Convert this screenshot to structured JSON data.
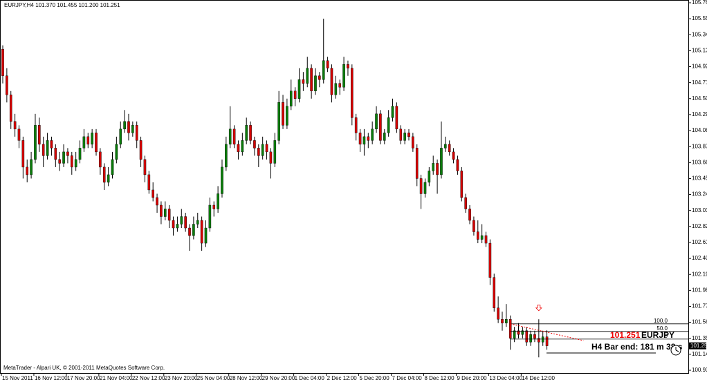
{
  "chart_data": {
    "type": "candlestick",
    "title": "EURJPY,H4  101.370 101.455 101.200 101.251",
    "footer": "MetaTrader - Alpari UK, © 2001-2011 MetaQuotes Software Corp.",
    "up_color": "#0a7d0a",
    "down_color": "#d40000",
    "ylim": [
      100.93,
      105.76
    ],
    "yticks": [
      {
        "value": 105.76,
        "label": "105.760"
      },
      {
        "value": 105.55,
        "label": "105.550"
      },
      {
        "value": 105.34,
        "label": "105.340"
      },
      {
        "value": 105.13,
        "label": "105.130"
      },
      {
        "value": 104.92,
        "label": "104.920"
      },
      {
        "value": 104.71,
        "label": "104.710"
      },
      {
        "value": 104.5,
        "label": "104.500"
      },
      {
        "value": 104.29,
        "label": "104.290"
      },
      {
        "value": 104.08,
        "label": "104.080"
      },
      {
        "value": 103.87,
        "label": "103.870"
      },
      {
        "value": 103.66,
        "label": "103.660"
      },
      {
        "value": 103.45,
        "label": "103.450"
      },
      {
        "value": 103.24,
        "label": "103.240"
      },
      {
        "value": 103.03,
        "label": "103.030"
      },
      {
        "value": 102.82,
        "label": "102.820"
      },
      {
        "value": 102.61,
        "label": "102.610"
      },
      {
        "value": 102.4,
        "label": "102.400"
      },
      {
        "value": 102.19,
        "label": "102.190"
      },
      {
        "value": 101.98,
        "label": "101.980"
      },
      {
        "value": 101.77,
        "label": "101.770"
      },
      {
        "value": 101.56,
        "label": "101.560"
      },
      {
        "value": 101.35,
        "label": "101.350"
      },
      {
        "value": 101.14,
        "label": "101.140"
      },
      {
        "value": 100.93,
        "label": "100.930"
      }
    ],
    "categories": [
      "15 Nov 2011",
      null,
      null,
      null,
      null,
      null,
      null,
      null,
      "16 Nov 12:00",
      null,
      null,
      null,
      null,
      null,
      null,
      null,
      "17 Nov 20:00",
      null,
      null,
      null,
      null,
      null,
      null,
      null,
      "21 Nov 04:00",
      null,
      null,
      null,
      null,
      null,
      null,
      null,
      "22 Nov 12:00",
      null,
      null,
      null,
      null,
      null,
      null,
      null,
      "23 Nov 20:00",
      null,
      null,
      null,
      null,
      null,
      null,
      null,
      "25 Nov 04:00",
      null,
      null,
      null,
      null,
      null,
      null,
      null,
      "28 Nov 12:00",
      null,
      null,
      null,
      null,
      null,
      null,
      null,
      "29 Nov 20:00",
      null,
      null,
      null,
      null,
      null,
      null,
      null,
      "1 Dec 04:00",
      null,
      null,
      null,
      null,
      null,
      null,
      null,
      "2 Dec 12:00",
      null,
      null,
      null,
      null,
      null,
      null,
      null,
      "5 Dec 20:00",
      null,
      null,
      null,
      null,
      null,
      null,
      null,
      "7 Dec 04:00",
      null,
      null,
      null,
      null,
      null,
      null,
      null,
      "8 Dec 12:00",
      null,
      null,
      null,
      null,
      null,
      null,
      null,
      "9 Dec 20:00",
      null,
      null,
      null,
      null,
      null,
      null,
      null,
      "13 Dec 04:00",
      null,
      null,
      null,
      null,
      null,
      null,
      null,
      "14 Dec 12:00",
      null,
      null,
      null,
      null,
      null,
      null
    ],
    "open": [
      105.15,
      104.8,
      104.55,
      104.2,
      104.1,
      103.95,
      103.6,
      103.5,
      103.7,
      104.15,
      103.9,
      103.75,
      103.95,
      103.85,
      103.7,
      103.65,
      103.8,
      103.75,
      103.6,
      103.7,
      103.85,
      104,
      103.9,
      104.05,
      103.8,
      103.6,
      103.4,
      103.5,
      103.7,
      103.9,
      104.1,
      104.2,
      104.05,
      104.15,
      103.95,
      103.7,
      103.5,
      103.3,
      103.2,
      103.1,
      102.95,
      103.05,
      102.9,
      102.8,
      102.85,
      102.95,
      102.8,
      102.7,
      102.85,
      102.9,
      102.6,
      102.8,
      103.1,
      103.05,
      103.25,
      103.6,
      103.9,
      104.1,
      103.9,
      103.8,
      103.95,
      104.15,
      103.95,
      103.85,
      103.75,
      103.9,
      103.8,
      103.65,
      103.95,
      104.45,
      104.15,
      104.4,
      104.6,
      104.5,
      104.75,
      104.7,
      104.9,
      104.6,
      104.8,
      104.75,
      105,
      104.9,
      104.55,
      104.7,
      104.65,
      104.95,
      104.9,
      104.25,
      104.05,
      103.9,
      104,
      103.95,
      104.1,
      104.3,
      103.95,
      104.05,
      104.25,
      104.4,
      104.1,
      103.95,
      104.05,
      104,
      103.85,
      103.45,
      103.25,
      103.4,
      103.55,
      103.65,
      103.5,
      103.85,
      103.9,
      103.8,
      103.7,
      103.55,
      103.2,
      103.05,
      102.9,
      102.75,
      102.65,
      102.7,
      102.6,
      102.15,
      101.75,
      101.6,
      101.55,
      101.6,
      101.35,
      101.45,
      101.4,
      101.45,
      101.3,
      101.4,
      101.35,
      101.3,
      101.37
    ],
    "high": [
      105.2,
      104.9,
      104.6,
      104.3,
      104.15,
      104,
      103.7,
      103.8,
      104.3,
      104.25,
      104,
      104.05,
      104,
      103.9,
      103.8,
      103.9,
      103.85,
      103.8,
      103.8,
      103.95,
      104.1,
      104.05,
      104.1,
      104.1,
      103.85,
      103.65,
      103.6,
      103.8,
      104,
      104.2,
      104.35,
      104.3,
      104.2,
      104.2,
      104,
      103.75,
      103.55,
      103.4,
      103.25,
      103.15,
      103.15,
      103.1,
      102.95,
      102.95,
      103.05,
      103,
      102.85,
      102.95,
      103,
      102.95,
      102.9,
      103.2,
      103.15,
      103.35,
      103.7,
      104,
      104.4,
      104.15,
      103.95,
      104.05,
      104.25,
      104.2,
      104,
      103.9,
      104,
      103.95,
      103.85,
      104.05,
      104.6,
      104.55,
      104.5,
      104.75,
      104.65,
      104.9,
      104.85,
      105.05,
      104.95,
      104.9,
      104.85,
      105.55,
      105.05,
      104.95,
      104.8,
      104.75,
      105.05,
      105,
      104.95,
      104.3,
      104.1,
      104.1,
      104.05,
      104.2,
      104.4,
      104.35,
      104.1,
      104.35,
      104.5,
      104.45,
      104.15,
      104.1,
      104.1,
      104.05,
      103.9,
      103.5,
      103.45,
      103.6,
      103.75,
      103.7,
      104.2,
      104,
      103.95,
      103.85,
      103.75,
      103.6,
      103.25,
      103.1,
      102.95,
      102.9,
      102.85,
      102.75,
      102.65,
      102.2,
      101.9,
      101.7,
      101.8,
      101.65,
      101.5,
      101.55,
      101.5,
      101.5,
      101.45,
      101.45,
      101.6,
      101.45,
      101.455
    ],
    "low": [
      104.7,
      104.45,
      104.1,
      104,
      103.85,
      103.45,
      103.4,
      103.45,
      103.65,
      103.8,
      103.6,
      103.7,
      103.75,
      103.6,
      103.55,
      103.6,
      103.65,
      103.5,
      103.55,
      103.65,
      103.8,
      103.85,
      103.85,
      103.75,
      103.5,
      103.3,
      103.35,
      103.45,
      103.65,
      103.85,
      104.05,
      103.95,
      104,
      103.85,
      103.6,
      103.4,
      103.25,
      103.15,
      103,
      102.85,
      102.9,
      102.8,
      102.7,
      102.75,
      102.8,
      102.75,
      102.5,
      102.65,
      102.8,
      102.5,
      102.55,
      102.75,
      102.95,
      103,
      103.2,
      103.55,
      103.85,
      103.85,
      103.7,
      103.75,
      103.9,
      103.9,
      103.75,
      103.6,
      103.7,
      103.7,
      103.45,
      103.6,
      103.9,
      104.1,
      104.1,
      104.35,
      104.4,
      104.45,
      104.6,
      104.65,
      104.5,
      104.55,
      104.65,
      104.7,
      104.85,
      104.45,
      104.5,
      104.55,
      104.6,
      104.8,
      104.15,
      103.95,
      103.8,
      103.75,
      103.85,
      103.9,
      104.05,
      103.9,
      103.9,
      104,
      104.2,
      104.05,
      103.9,
      103.9,
      103.95,
      103.8,
      103.35,
      103.05,
      103.2,
      103.35,
      103.5,
      103.25,
      103.45,
      103.8,
      103.75,
      103.65,
      103.5,
      103.15,
      103,
      102.85,
      102.7,
      102.6,
      102.6,
      102.55,
      102.05,
      101.7,
      101.55,
      101.45,
      101.5,
      101.2,
      101.3,
      101.35,
      101.35,
      101.25,
      101.25,
      101.3,
      101.1,
      101.25,
      101.2
    ],
    "close": [
      104.8,
      104.55,
      104.2,
      104.1,
      103.95,
      103.6,
      103.5,
      103.7,
      104.15,
      103.9,
      103.75,
      103.95,
      103.85,
      103.7,
      103.65,
      103.8,
      103.75,
      103.6,
      103.7,
      103.85,
      104,
      103.9,
      104.05,
      103.8,
      103.6,
      103.4,
      103.5,
      103.7,
      103.9,
      104.1,
      104.2,
      104.05,
      104.15,
      103.95,
      103.7,
      103.5,
      103.3,
      103.2,
      103.1,
      102.95,
      103.05,
      102.9,
      102.8,
      102.85,
      102.95,
      102.8,
      102.7,
      102.85,
      102.9,
      102.6,
      102.8,
      103.1,
      103.05,
      103.25,
      103.6,
      103.9,
      104.1,
      103.9,
      103.8,
      103.95,
      104.15,
      103.95,
      103.85,
      103.75,
      103.9,
      103.8,
      103.65,
      103.95,
      104.45,
      104.15,
      104.4,
      104.6,
      104.5,
      104.75,
      104.7,
      104.9,
      104.6,
      104.8,
      104.75,
      105,
      104.9,
      104.55,
      104.7,
      104.65,
      104.95,
      104.9,
      104.25,
      104.05,
      103.9,
      104,
      103.95,
      104.1,
      104.3,
      103.95,
      104.05,
      104.25,
      104.4,
      104.1,
      103.95,
      104.05,
      104,
      103.85,
      103.45,
      103.25,
      103.4,
      103.55,
      103.65,
      103.5,
      103.85,
      103.9,
      103.8,
      103.7,
      103.55,
      103.2,
      103.05,
      102.9,
      102.75,
      102.65,
      102.7,
      102.6,
      102.15,
      101.75,
      101.6,
      101.55,
      101.6,
      101.35,
      101.45,
      101.4,
      101.45,
      101.3,
      101.4,
      101.35,
      101.3,
      101.37,
      101.251
    ],
    "bid_label": "101.251",
    "symbol_label": "EURJPY",
    "timer_label": "H4 Bar end: 181 m 38 s",
    "fibonacci": {
      "levels": [
        {
          "value": 100,
          "label": "100.0"
        },
        {
          "value": 50,
          "label": "50.0"
        },
        0
      ],
      "prices": [
        101.54,
        101.44,
        101.34
      ],
      "start": 125
    },
    "trendline": {
      "x": [
        125,
        143
      ],
      "y": [
        101.54,
        101.32
      ]
    },
    "arrow": {
      "x": 132,
      "y": 101.74
    }
  }
}
